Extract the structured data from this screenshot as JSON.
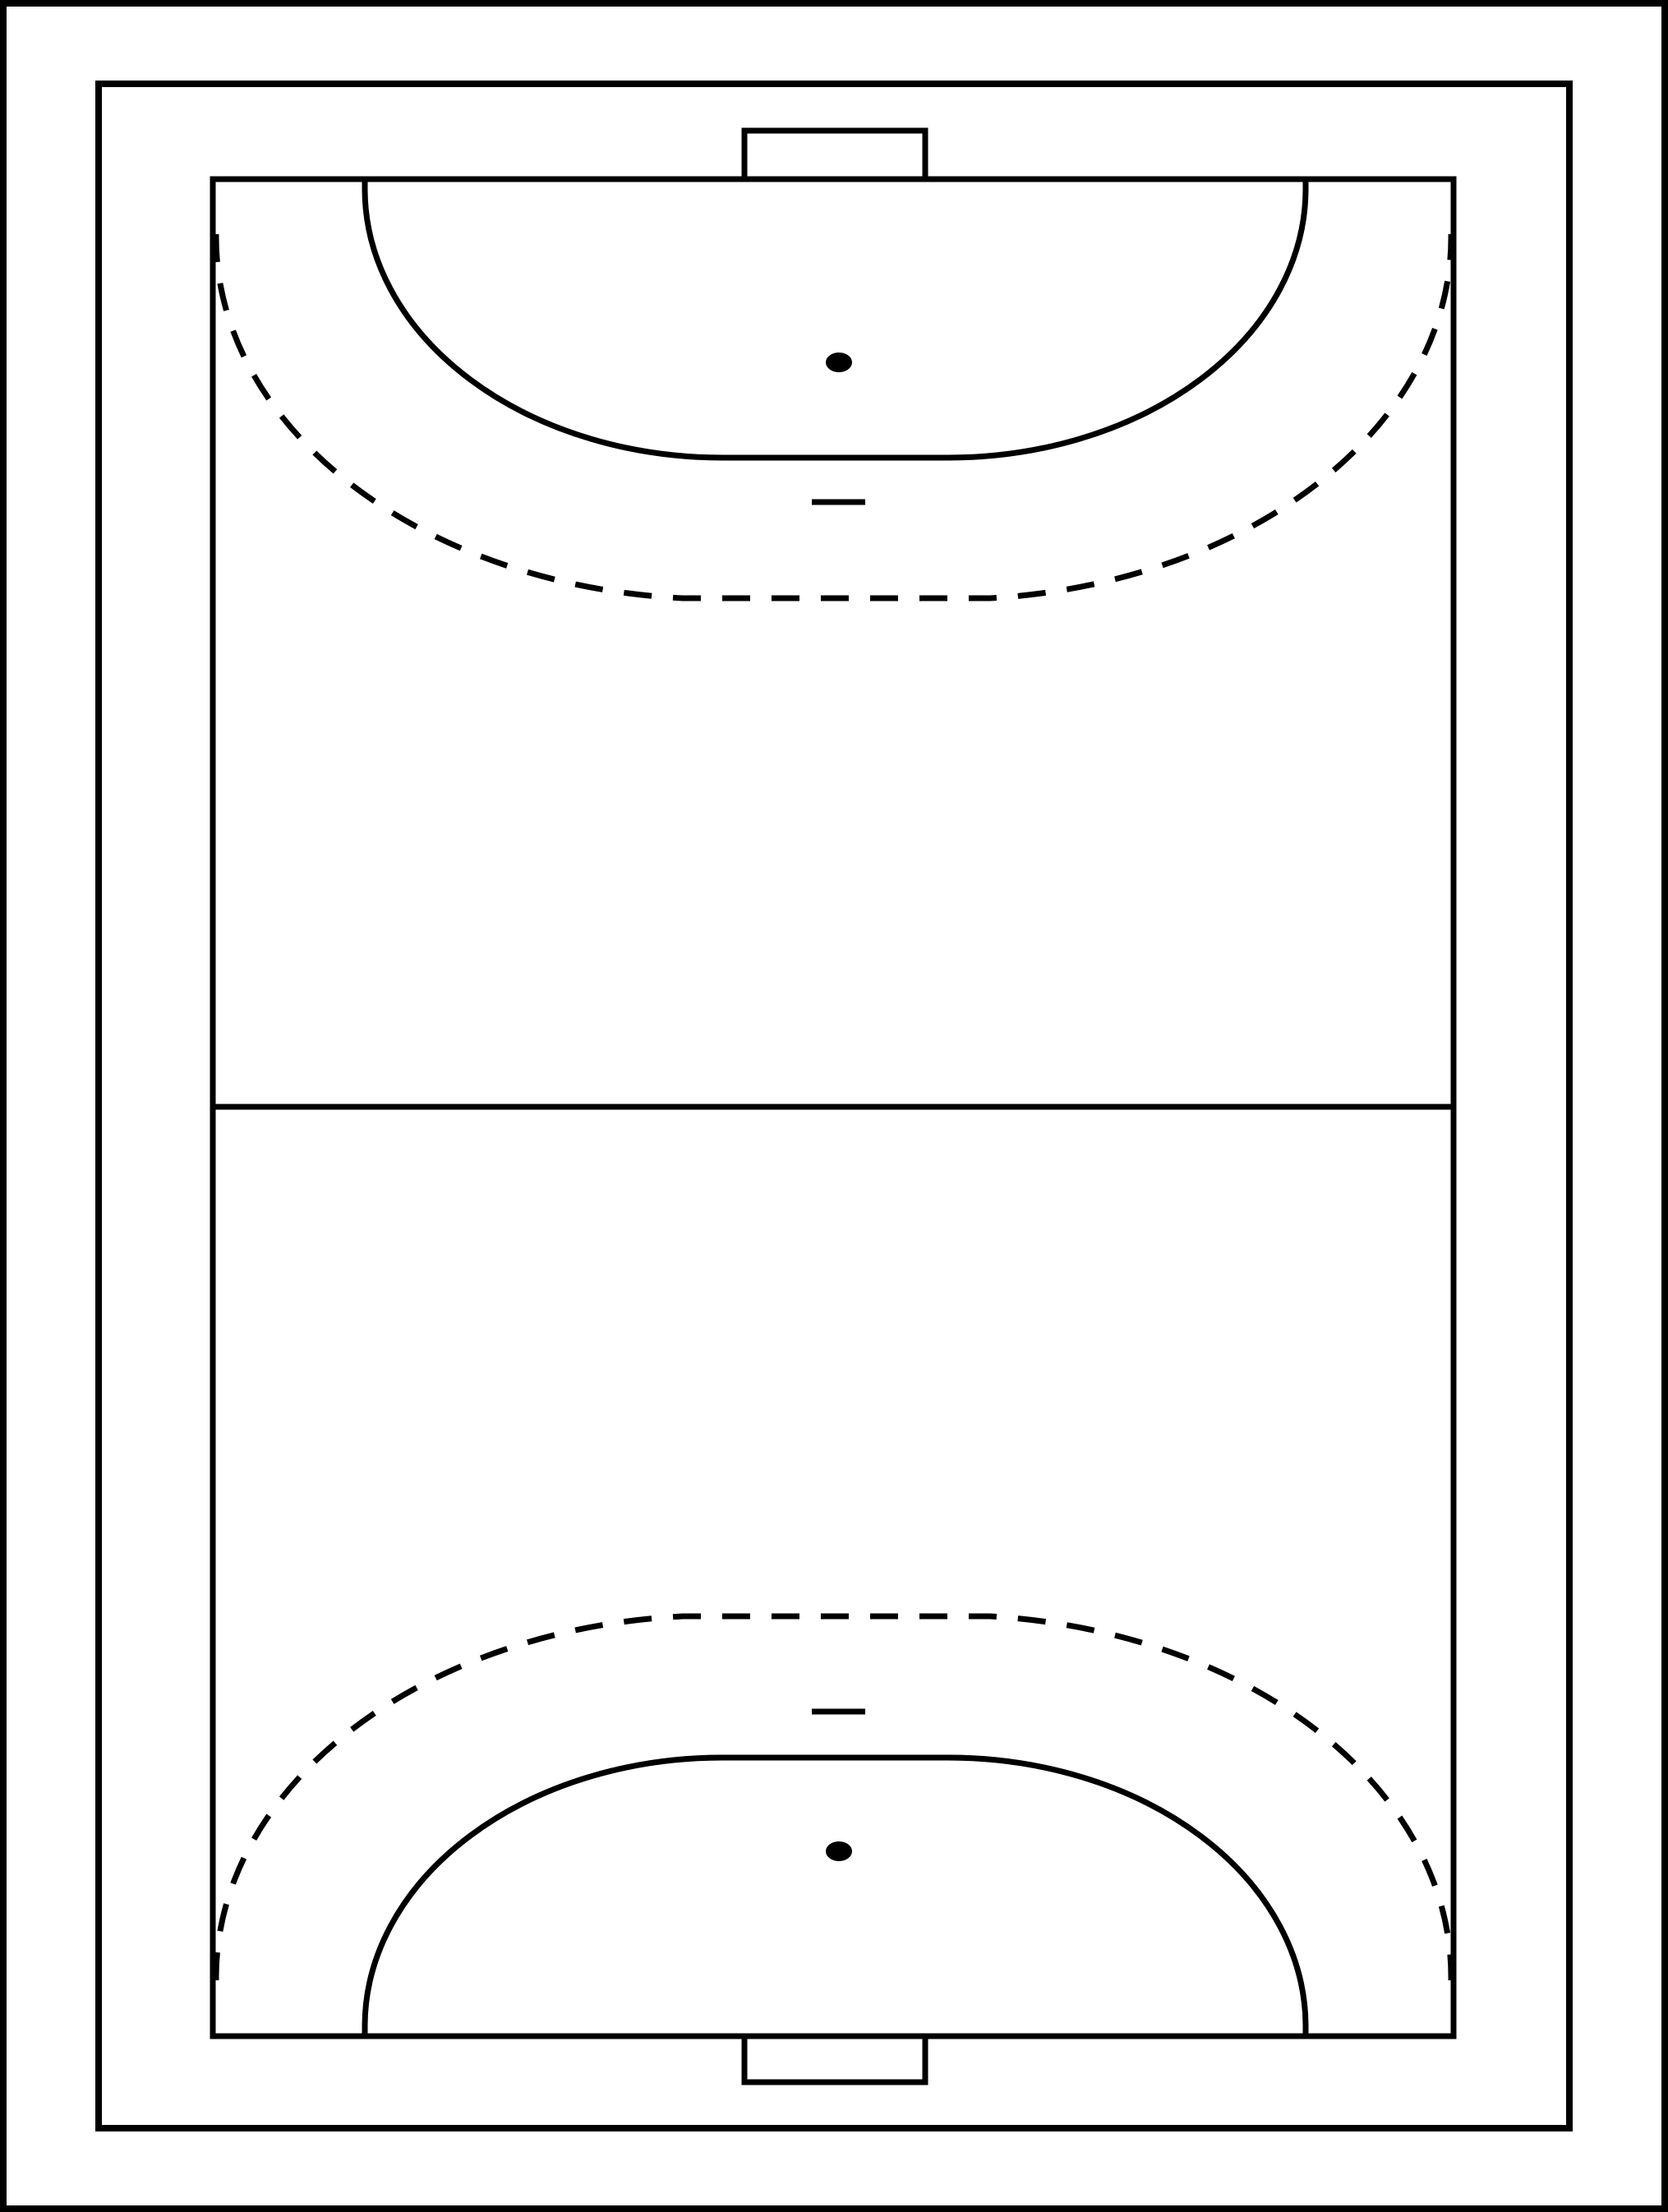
{
  "diagram": {
    "subject": "handball-court",
    "orientation": "portrait",
    "colors": {
      "background": "#ffffff",
      "line": "#000000"
    },
    "style": {
      "line_type_goal_area": "solid",
      "line_type_free_throw": "dashed",
      "penalty_mark": "filled-dot"
    },
    "elements": [
      "outer-border",
      "surround-boundary",
      "court-boundary",
      "center-line",
      "goal-top",
      "goal-bottom",
      "goal-area-top",
      "goal-area-bottom",
      "free-throw-line-top",
      "free-throw-line-bottom",
      "seven-meter-mark-top",
      "seven-meter-mark-bottom",
      "goalkeeper-limit-top",
      "goalkeeper-limit-bottom"
    ]
  }
}
